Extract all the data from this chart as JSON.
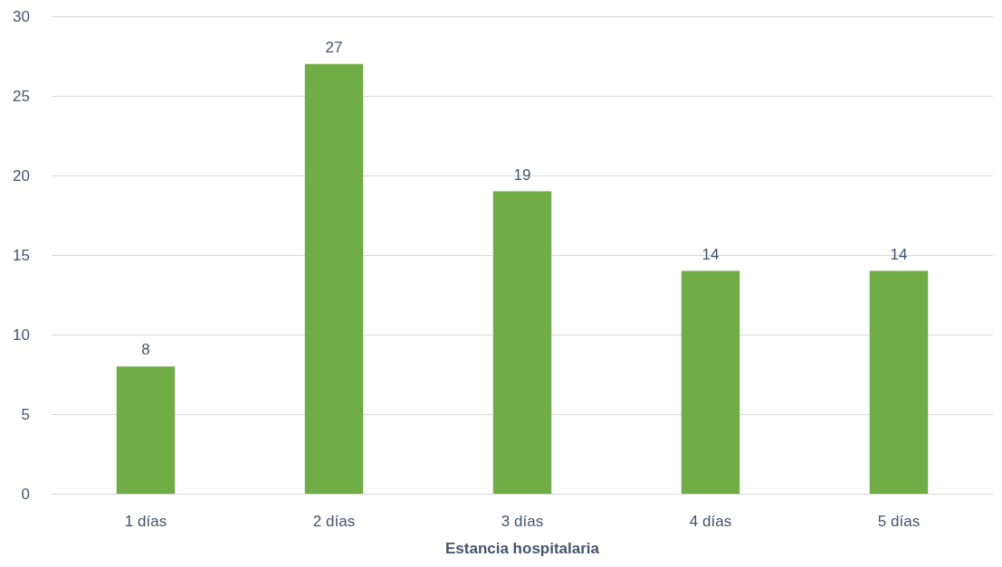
{
  "chart_data": {
    "type": "bar",
    "xlabel": "Estancia hospitalaria",
    "categories": [
      "1 días",
      "2 días",
      "3 días",
      "4 días",
      "5 días"
    ],
    "values": [
      8,
      27,
      19,
      14,
      14
    ],
    "color": "#70ad47",
    "ylim": [
      0,
      30
    ],
    "yticks": [
      0,
      5,
      10,
      15,
      20,
      25,
      30
    ],
    "grid": "y",
    "data_labels": true
  }
}
